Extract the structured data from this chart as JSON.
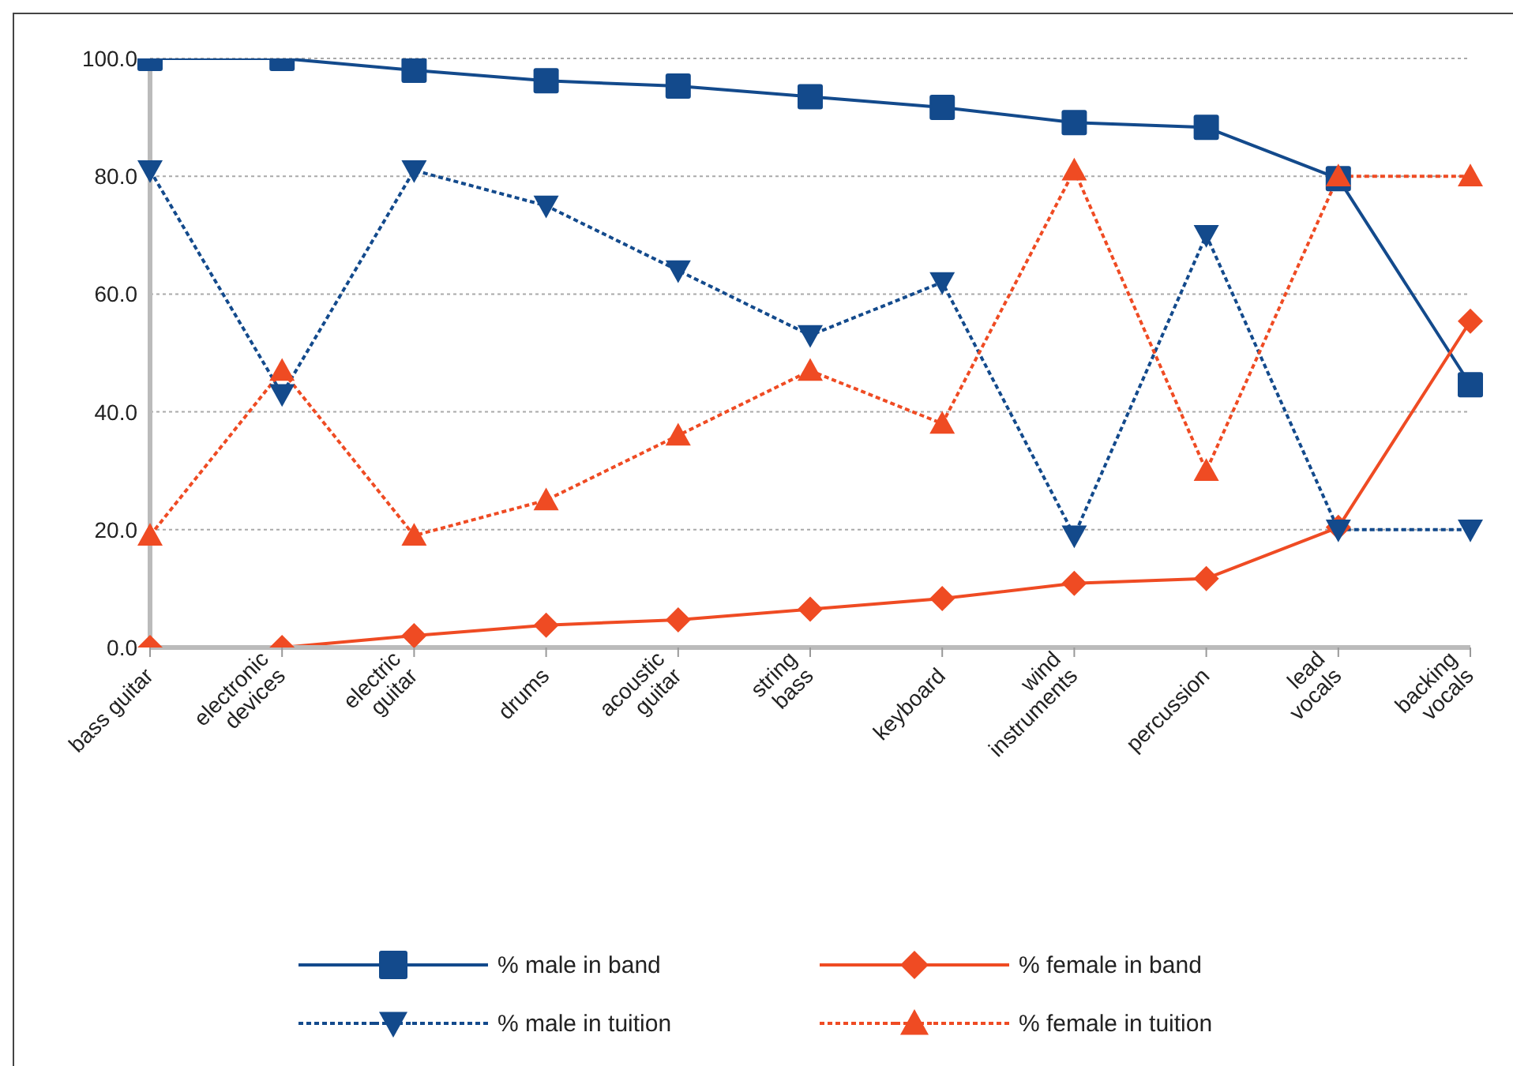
{
  "chart_data": {
    "type": "line",
    "categories": [
      "bass guitar",
      "electronic\ndevices",
      "electric\nguitar",
      "drums",
      "acoustic\nguitar",
      "string\nbass",
      "keyboard",
      "wind\ninstruments",
      "percussion",
      "lead\nvocals",
      "backing\nvocals"
    ],
    "series": [
      {
        "name": "% male in band",
        "color": "#134a8c",
        "marker": "square",
        "line_style": "solid",
        "values": [
          100,
          100,
          98,
          96.2,
          95.3,
          93.5,
          91.7,
          89.1,
          88.3,
          79.6,
          44.6
        ]
      },
      {
        "name": "% female in band",
        "color": "#ef4b23",
        "marker": "diamond",
        "line_style": "solid",
        "values": [
          0,
          0,
          2,
          3.8,
          4.7,
          6.5,
          8.3,
          10.9,
          11.7,
          20.4,
          55.4
        ]
      },
      {
        "name": "% male in tuition",
        "color": "#134a8c",
        "marker": "triangle-down",
        "line_style": "dotted",
        "values": [
          81,
          43,
          81,
          75,
          64,
          53,
          62,
          19,
          70,
          20,
          20
        ]
      },
      {
        "name": "% female in tuition",
        "color": "#ef4b23",
        "marker": "triangle",
        "line_style": "dotted",
        "values": [
          19,
          47,
          19,
          25,
          36,
          47,
          38,
          81,
          30,
          80,
          80
        ]
      }
    ],
    "ylim": [
      0,
      100
    ],
    "yticks": [
      {
        "value": 0,
        "label": "0.0"
      },
      {
        "value": 20,
        "label": "20.0"
      },
      {
        "value": 40,
        "label": "40.0"
      },
      {
        "value": 60,
        "label": "60.0"
      },
      {
        "value": 80,
        "label": "80.0"
      },
      {
        "value": 100,
        "label": "100.0"
      }
    ],
    "grid": "y",
    "legend": "bottom"
  }
}
